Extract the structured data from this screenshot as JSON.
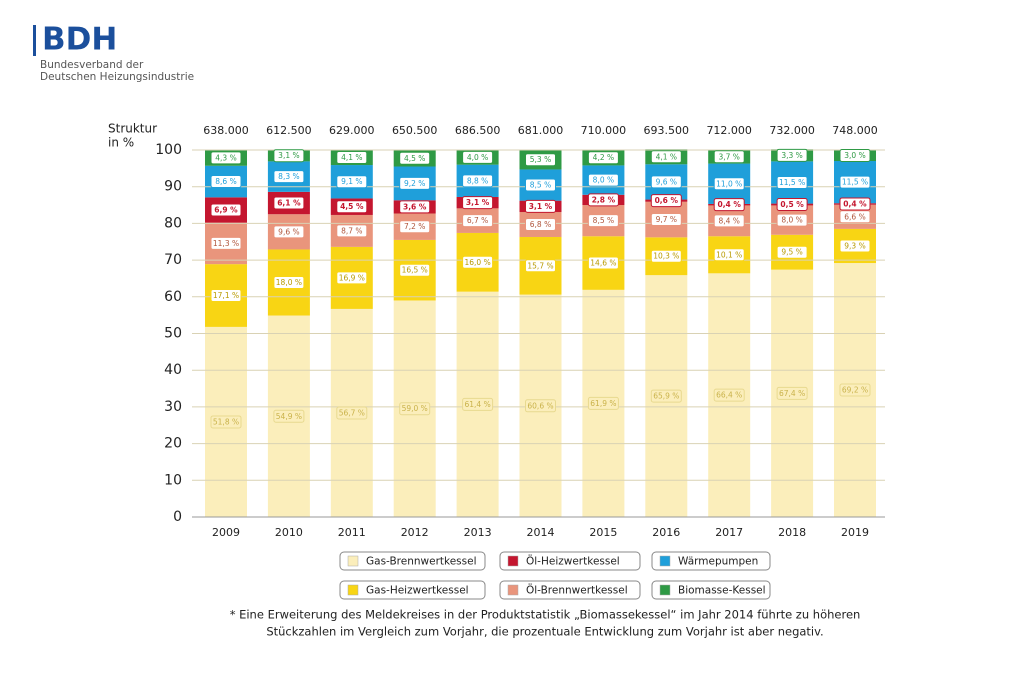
{
  "header": {
    "logo": "BDH",
    "lines": [
      "Bundesverband der",
      "Deutschen Heizungsindustrie"
    ]
  },
  "chart_data": {
    "type": "stacked_bar",
    "ylabel_lines": [
      "Struktur",
      "in %"
    ],
    "categories": [
      "2009",
      "2010",
      "2011",
      "2012",
      "2013",
      "2014",
      "2015",
      "2016",
      "2017",
      "2018",
      "2019"
    ],
    "totals": {
      "values": [
        638000,
        612500,
        629000,
        650500,
        686500,
        681000,
        710000,
        693500,
        712000,
        732000,
        748000
      ],
      "value_labels": [
        "638.000",
        "612.500",
        "629.000",
        "650.500",
        "686.500",
        "681.000",
        "710.000",
        "693.500",
        "712.000",
        "732.000",
        "748.000"
      ]
    },
    "ylim": [
      0,
      100
    ],
    "yticks": [
      0,
      10,
      20,
      30,
      40,
      50,
      60,
      70,
      80,
      90,
      100
    ],
    "grid": true,
    "series": [
      {
        "name": "Gas-Brennwertkessel",
        "color": "#fbeebb",
        "values": [
          51.8,
          54.9,
          56.7,
          59.0,
          61.4,
          60.6,
          61.9,
          65.9,
          66.4,
          67.4,
          69.2
        ],
        "value_labels": [
          "51,8 %",
          "54,9 %",
          "56,7 %",
          "59,0 %",
          "61,4 %",
          "60,6 %",
          "61,9 %",
          "65,9 %",
          "66,4 %",
          "67,4 %",
          "69,2 %"
        ]
      },
      {
        "name": "Gas-Heizwertkessel",
        "color": "#f8d514",
        "values": [
          17.1,
          18.0,
          16.9,
          16.5,
          16.0,
          15.7,
          14.6,
          10.3,
          10.1,
          9.5,
          9.3
        ],
        "value_labels": [
          "17,1 %",
          "18,0 %",
          "16,9 %",
          "16,5 %",
          "16,0 %",
          "15,7 %",
          "14,6 %",
          "10,3 %",
          "10,1 %",
          "9,5 %",
          "9,3 %"
        ]
      },
      {
        "name": "Öl-Brennwertkessel",
        "color": "#e9957c",
        "values": [
          11.3,
          9.6,
          8.7,
          7.2,
          6.7,
          6.8,
          8.5,
          9.7,
          8.4,
          8.0,
          6.6
        ],
        "value_labels": [
          "11,3 %",
          "9,6 %",
          "8,7 %",
          "7,2 %",
          "6,7 %",
          "6,8 %",
          "8,5 %",
          "9,7 %",
          "8,4 %",
          "8,0 %",
          "6,6 %"
        ]
      },
      {
        "name": "Öl-Heizwertkessel",
        "color": "#c4162f",
        "values": [
          6.9,
          6.1,
          4.5,
          3.6,
          3.1,
          3.1,
          2.8,
          0.6,
          0.4,
          0.5,
          0.4
        ],
        "value_labels": [
          "6,9 %",
          "6,1 %",
          "4,5 %",
          "3,6 %",
          "3,1 %",
          "3,1 %",
          "2,8 %",
          "0,6 %",
          "0,4 %",
          "0,5 %",
          "0,4 %"
        ]
      },
      {
        "name": "Wärmepumpen",
        "color": "#1f9fda",
        "values": [
          8.6,
          8.3,
          9.1,
          9.2,
          8.8,
          8.5,
          8.0,
          9.6,
          11.0,
          11.5,
          11.5
        ],
        "value_labels": [
          "8,6 %",
          "8,3 %",
          "9,1 %",
          "9,2 %",
          "8,8 %",
          "8,5 %",
          "8,0 %",
          "9,6 %",
          "11,0 %",
          "11,5 %",
          "11,5 %"
        ]
      },
      {
        "name": "Biomasse-Kessel",
        "color": "#2f9a45",
        "values": [
          4.3,
          3.1,
          4.1,
          4.5,
          4.0,
          5.3,
          4.2,
          4.1,
          3.7,
          3.3,
          3.0
        ],
        "value_labels": [
          "4,3 %",
          "3,1 %",
          "4,1 %",
          "4,5 %",
          "4,0 %",
          "5,3 %",
          "4,2 %",
          "4,1 %",
          "3,7 %",
          "3,3 %",
          "3,0 %"
        ]
      }
    ],
    "footnote_lines": [
      "* Eine Erweiterung des Meldekreises in der Produktstatistik „Biomassekessel“ im Jahr 2014 führte zu höheren",
      "Stückzahlen im Vergleich zum Vorjahr, die prozentuale Entwicklung zum Vorjahr ist aber negativ."
    ]
  }
}
